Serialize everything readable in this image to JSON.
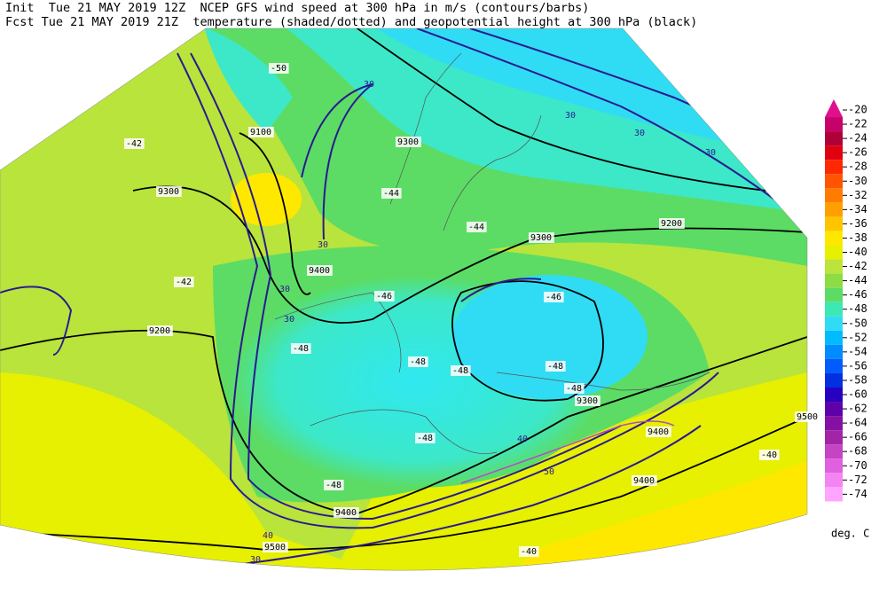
{
  "header": {
    "init_line": "Init  Tue 21 MAY 2019 12Z  NCEP GFS wind speed at 300 hPa in m/s (contours/barbs)",
    "fcst_line": "Fcst Tue 21 MAY 2019 21Z  temperature (shaded/dotted) and geopotential height at 300 hPa (black)"
  },
  "legend": {
    "unit": "deg. C",
    "entries": [
      {
        "value": -20,
        "color": "#e0108c"
      },
      {
        "value": -22,
        "color": "#c8006a"
      },
      {
        "value": -24,
        "color": "#b00038"
      },
      {
        "value": -26,
        "color": "#e00010"
      },
      {
        "value": -28,
        "color": "#ff2800"
      },
      {
        "value": -30,
        "color": "#ff5400"
      },
      {
        "value": -32,
        "color": "#ff7c00"
      },
      {
        "value": -34,
        "color": "#ffa000"
      },
      {
        "value": -36,
        "color": "#ffc400"
      },
      {
        "value": -38,
        "color": "#ffe800"
      },
      {
        "value": -40,
        "color": "#e6f000"
      },
      {
        "value": -42,
        "color": "#bce43c"
      },
      {
        "value": -44,
        "color": "#8cdc44"
      },
      {
        "value": -46,
        "color": "#5cdc64"
      },
      {
        "value": -48,
        "color": "#3ce8b4"
      },
      {
        "value": -50,
        "color": "#30dcf4"
      },
      {
        "value": -52,
        "color": "#00bcff"
      },
      {
        "value": -54,
        "color": "#008cff"
      },
      {
        "value": -56,
        "color": "#005cff"
      },
      {
        "value": -58,
        "color": "#0030e0"
      },
      {
        "value": -60,
        "color": "#2800c0"
      },
      {
        "value": -62,
        "color": "#6000a8"
      },
      {
        "value": -64,
        "color": "#8410a4"
      },
      {
        "value": -66,
        "color": "#a424a8"
      },
      {
        "value": -68,
        "color": "#c444c4"
      },
      {
        "value": -70,
        "color": "#e060e0"
      },
      {
        "value": -72,
        "color": "#f484f4"
      },
      {
        "value": -74,
        "color": "#ffa4ff"
      }
    ]
  },
  "map": {
    "labels": [
      "9100",
      "9300",
      "9300",
      "9300",
      "9200",
      "9400",
      "9200",
      "9300",
      "9400",
      "9400",
      "9500",
      "9500",
      "9400",
      "30",
      "30",
      "30",
      "30",
      "30",
      "30",
      "30",
      "40",
      "40",
      "50",
      "30",
      "-42",
      "-42",
      "-44",
      "-46",
      "-48",
      "-48",
      "-48",
      "-48",
      "-48",
      "-48",
      "-50",
      "-40",
      "-40",
      "-48",
      "-44",
      "-46"
    ]
  }
}
